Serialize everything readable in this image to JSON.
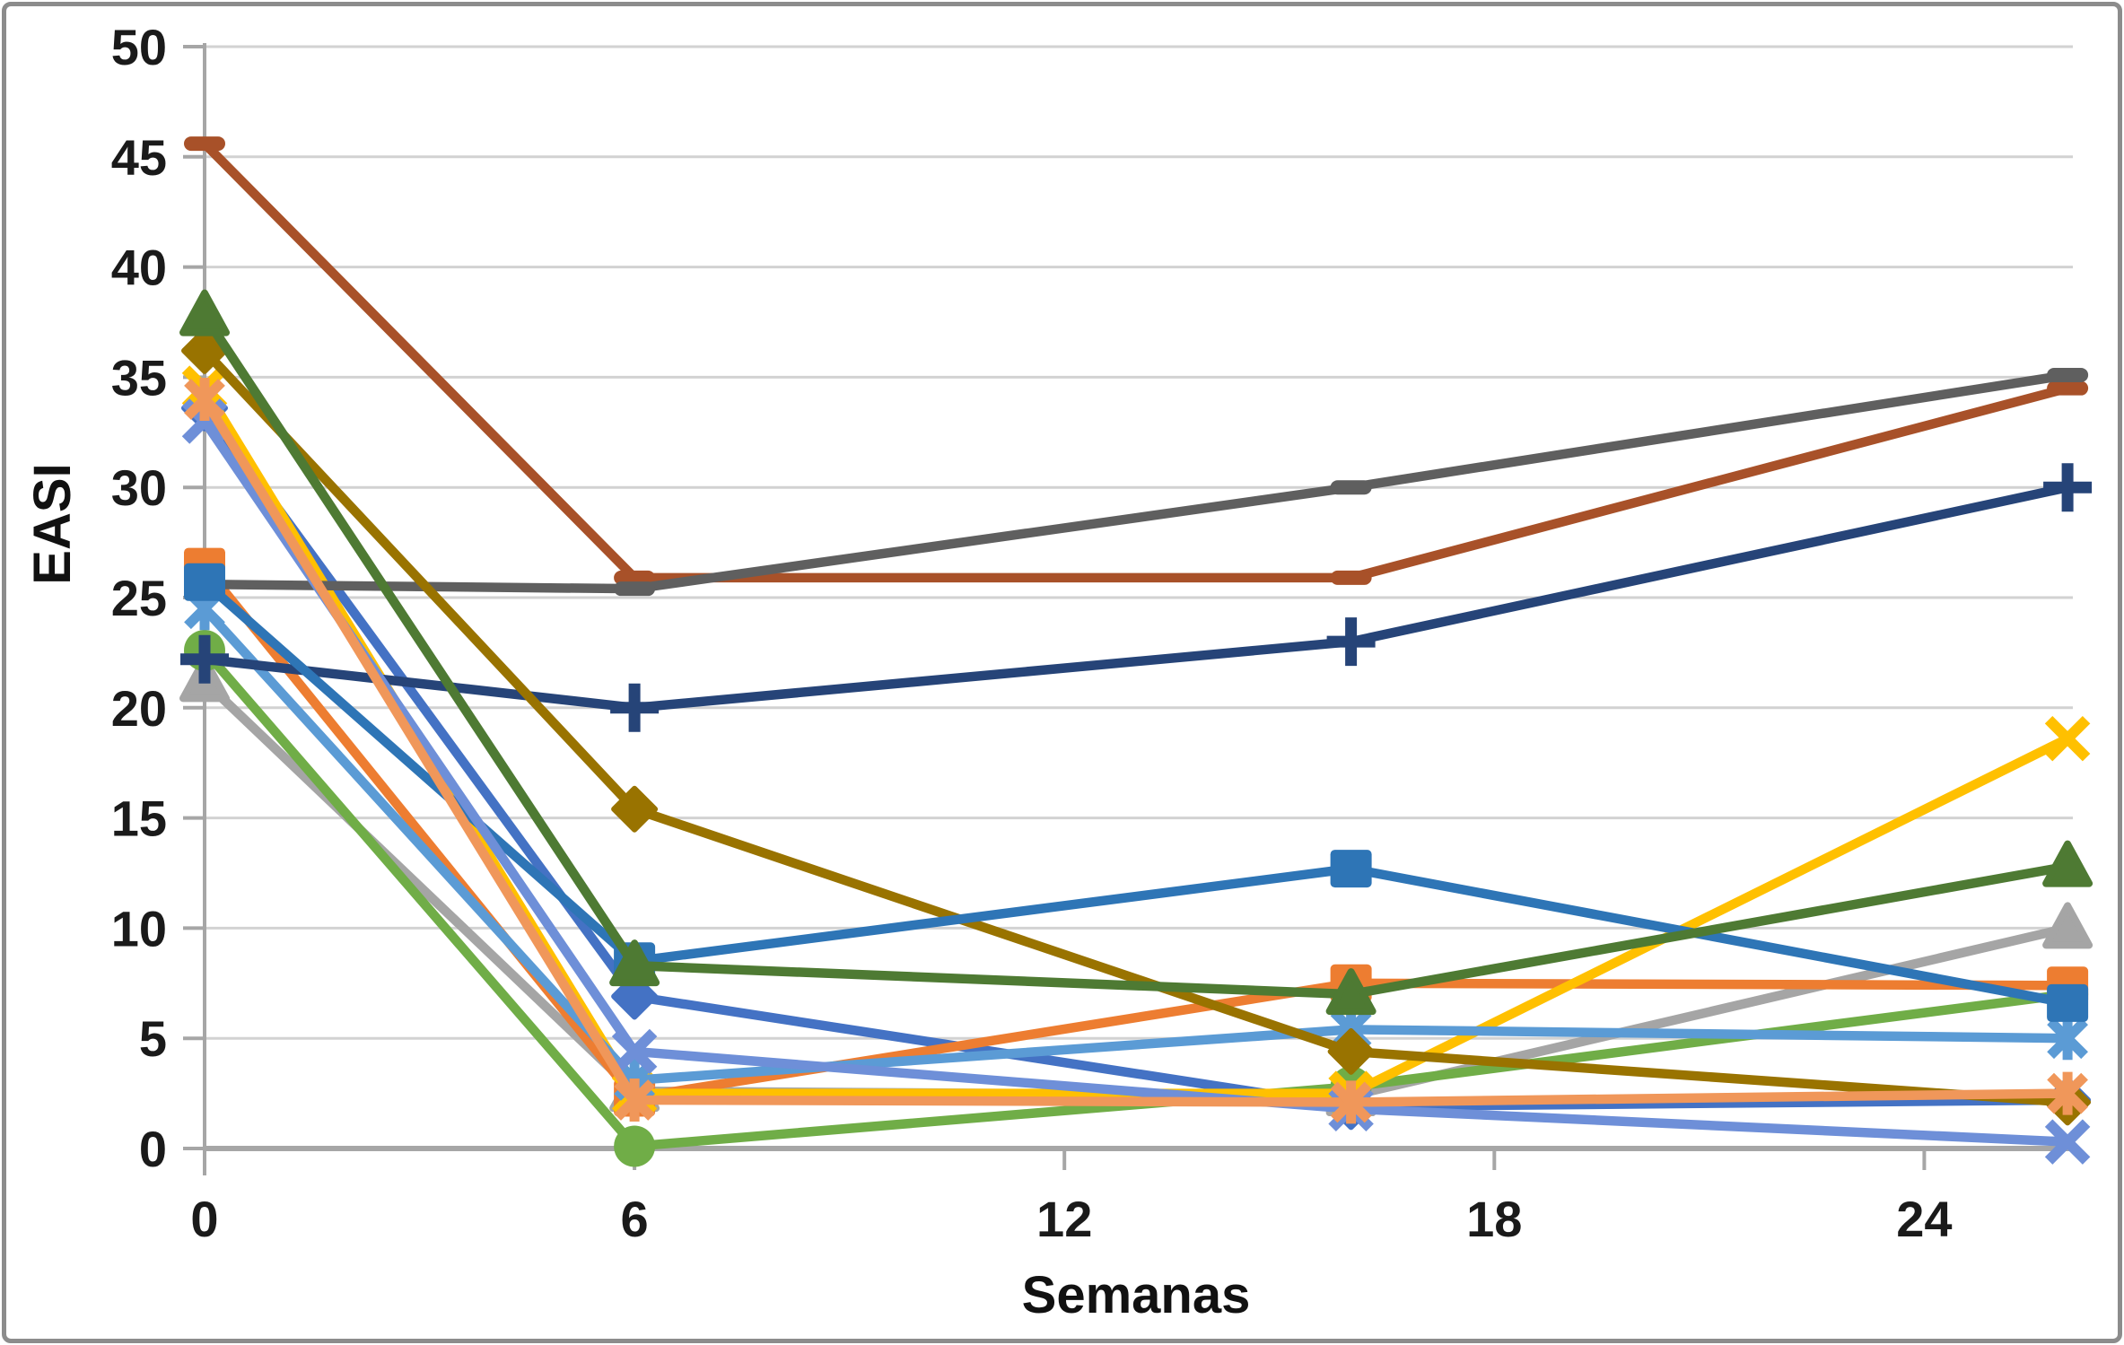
{
  "chart_data": {
    "type": "line",
    "title": "",
    "xlabel": "Semanas",
    "ylabel": "EASI",
    "weeks": [
      0,
      6,
      16,
      26
    ],
    "xticks": [
      0,
      6,
      12,
      18,
      24
    ],
    "yticks": [
      0,
      5,
      10,
      15,
      20,
      25,
      30,
      35,
      40,
      45,
      50
    ],
    "xlim": [
      0,
      26
    ],
    "ylim": [
      0,
      50
    ],
    "grid": true,
    "legend": "none",
    "colors": {
      "axis": "#a6a6a6",
      "gridline": "#d2d2d2",
      "tick_label": "#1a1a1a",
      "background": "#ffffff",
      "frame_border": "#8c8c8c"
    },
    "series": [
      {
        "name": "gray-triangle",
        "color": "#A5A5A5",
        "marker": "triangle",
        "values": [
          21.2,
          2.6,
          2.4,
          10.0
        ]
      },
      {
        "name": "green-circle",
        "color": "#70AD47",
        "marker": "circle",
        "values": [
          22.6,
          0.1,
          2.8,
          7.0
        ]
      },
      {
        "name": "royal-blue-diamond",
        "color": "#4472C4",
        "marker": "diamond",
        "values": [
          33.6,
          6.9,
          1.9,
          2.2
        ]
      },
      {
        "name": "orange-square",
        "color": "#ED7D31",
        "marker": "square",
        "values": [
          26.4,
          2.3,
          7.5,
          7.4
        ]
      },
      {
        "name": "gold-x",
        "color": "#FFC000",
        "marker": "x",
        "values": [
          34.5,
          2.5,
          2.5,
          18.6
        ]
      },
      {
        "name": "sky-blue-asterisk",
        "color": "#5B9BD5",
        "marker": "asterisk",
        "values": [
          24.5,
          3.1,
          5.4,
          5.0
        ]
      },
      {
        "name": "navy-plus",
        "color": "#264478",
        "marker": "plus",
        "values": [
          22.2,
          20.0,
          23.0,
          30.0
        ]
      },
      {
        "name": "rust-dash",
        "color": "#A85129",
        "marker": "dash",
        "values": [
          45.6,
          25.9,
          25.9,
          34.5
        ]
      },
      {
        "name": "dark-gray-dash",
        "color": "#5F5F5F",
        "marker": "dash",
        "values": [
          25.6,
          25.4,
          30.0,
          35.1
        ]
      },
      {
        "name": "olive-diamond",
        "color": "#997300",
        "marker": "diamond",
        "values": [
          36.2,
          15.4,
          4.4,
          2.1
        ]
      },
      {
        "name": "steel-blue-square",
        "color": "#2E75B6",
        "marker": "square",
        "values": [
          25.7,
          8.5,
          12.7,
          6.6
        ]
      },
      {
        "name": "dark-green-triangle",
        "color": "#4E7A33",
        "marker": "triangle",
        "values": [
          37.8,
          8.3,
          7.0,
          12.8
        ]
      },
      {
        "name": "periwinkle-x",
        "color": "#6E8FD8",
        "marker": "x",
        "values": [
          33.0,
          4.4,
          1.8,
          0.3
        ]
      },
      {
        "name": "light-orange-asterisk",
        "color": "#F0975A",
        "marker": "asterisk",
        "values": [
          34.0,
          2.2,
          2.1,
          2.5
        ]
      }
    ]
  }
}
